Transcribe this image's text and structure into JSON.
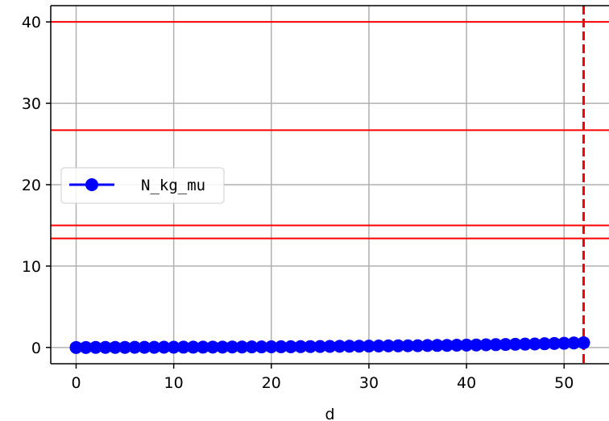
{
  "chart_data": {
    "type": "line",
    "title": "",
    "xlabel": "d",
    "ylabel": "",
    "xlim": [
      -2.6,
      54.6
    ],
    "ylim": [
      -2,
      42
    ],
    "xticks": [
      0,
      10,
      20,
      30,
      40,
      50
    ],
    "yticks": [
      0,
      10,
      20,
      30,
      40
    ],
    "grid": true,
    "legend": {
      "placement": "center-left"
    },
    "colors": {
      "series": "#0000ff",
      "reference": "#ff0000",
      "grid": "#b0b0b0"
    },
    "series": [
      {
        "name": "N_kg_mu",
        "marker": "circle",
        "x": [
          0,
          1,
          2,
          3,
          4,
          5,
          6,
          7,
          8,
          9,
          10,
          11,
          12,
          13,
          14,
          15,
          16,
          17,
          18,
          19,
          20,
          21,
          22,
          23,
          24,
          25,
          26,
          27,
          28,
          29,
          30,
          31,
          32,
          33,
          34,
          35,
          36,
          37,
          38,
          39,
          40,
          41,
          42,
          43,
          44,
          45,
          46,
          47,
          48,
          49,
          50,
          51,
          52
        ],
        "values": [
          0.0,
          0.0,
          0.01,
          0.01,
          0.01,
          0.01,
          0.02,
          0.02,
          0.02,
          0.03,
          0.03,
          0.04,
          0.04,
          0.04,
          0.05,
          0.05,
          0.06,
          0.06,
          0.07,
          0.07,
          0.08,
          0.09,
          0.09,
          0.1,
          0.11,
          0.12,
          0.13,
          0.14,
          0.15,
          0.16,
          0.17,
          0.18,
          0.19,
          0.2,
          0.21,
          0.22,
          0.24,
          0.25,
          0.26,
          0.28,
          0.29,
          0.31,
          0.33,
          0.35,
          0.37,
          0.39,
          0.41,
          0.43,
          0.46,
          0.49,
          0.52,
          0.55,
          0.58
        ]
      }
    ],
    "hlines": [
      40,
      26.7,
      15.0,
      13.4
    ],
    "vlines": [
      {
        "x": 52,
        "style": "dashed"
      }
    ]
  }
}
